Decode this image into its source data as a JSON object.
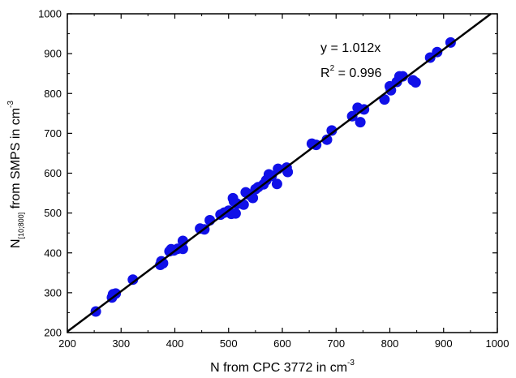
{
  "chart_data": {
    "type": "scatter",
    "xlabel": {
      "main": "N from CPC 3772 in cm",
      "sup": "-3"
    },
    "ylabel": {
      "pre": "N",
      "sub": "[10;800]",
      "post": " from SMPS in cm",
      "sup": "-3"
    },
    "xlim": [
      200,
      1000
    ],
    "ylim": [
      200,
      1000
    ],
    "xticks": [
      "200",
      "300",
      "400",
      "500",
      "600",
      "700",
      "800",
      "900",
      "1000"
    ],
    "yticks": [
      "200",
      "300",
      "400",
      "500",
      "600",
      "700",
      "800",
      "900",
      "1000"
    ],
    "grid": false,
    "point_color": "#1010e8",
    "line_color": "#000000",
    "fit": {
      "slope": 1.012,
      "equation": "y = 1.012x",
      "r2_prefix": "R",
      "r2_sup": "2",
      "r2_value": " = 0.996"
    },
    "points": [
      {
        "x": 253,
        "y": 253
      },
      {
        "x": 283,
        "y": 288
      },
      {
        "x": 285,
        "y": 296
      },
      {
        "x": 290,
        "y": 298
      },
      {
        "x": 322,
        "y": 333
      },
      {
        "x": 373,
        "y": 370
      },
      {
        "x": 375,
        "y": 379
      },
      {
        "x": 378,
        "y": 374
      },
      {
        "x": 390,
        "y": 404
      },
      {
        "x": 393,
        "y": 409
      },
      {
        "x": 398,
        "y": 406
      },
      {
        "x": 405,
        "y": 410
      },
      {
        "x": 415,
        "y": 410
      },
      {
        "x": 415,
        "y": 430
      },
      {
        "x": 447,
        "y": 461
      },
      {
        "x": 455,
        "y": 459
      },
      {
        "x": 465,
        "y": 482
      },
      {
        "x": 485,
        "y": 496
      },
      {
        "x": 492,
        "y": 501
      },
      {
        "x": 500,
        "y": 506
      },
      {
        "x": 505,
        "y": 498
      },
      {
        "x": 508,
        "y": 537
      },
      {
        "x": 510,
        "y": 529
      },
      {
        "x": 513,
        "y": 499
      },
      {
        "x": 516,
        "y": 523
      },
      {
        "x": 528,
        "y": 521
      },
      {
        "x": 532,
        "y": 552
      },
      {
        "x": 538,
        "y": 546
      },
      {
        "x": 545,
        "y": 538
      },
      {
        "x": 550,
        "y": 560
      },
      {
        "x": 555,
        "y": 565
      },
      {
        "x": 565,
        "y": 572
      },
      {
        "x": 570,
        "y": 582
      },
      {
        "x": 575,
        "y": 597
      },
      {
        "x": 580,
        "y": 593
      },
      {
        "x": 590,
        "y": 573
      },
      {
        "x": 592,
        "y": 611
      },
      {
        "x": 608,
        "y": 614
      },
      {
        "x": 610,
        "y": 603
      },
      {
        "x": 655,
        "y": 674
      },
      {
        "x": 663,
        "y": 671
      },
      {
        "x": 683,
        "y": 684
      },
      {
        "x": 692,
        "y": 707
      },
      {
        "x": 730,
        "y": 743
      },
      {
        "x": 740,
        "y": 764
      },
      {
        "x": 745,
        "y": 728
      },
      {
        "x": 752,
        "y": 760
      },
      {
        "x": 790,
        "y": 785
      },
      {
        "x": 800,
        "y": 818
      },
      {
        "x": 802,
        "y": 808
      },
      {
        "x": 813,
        "y": 829
      },
      {
        "x": 818,
        "y": 843
      },
      {
        "x": 824,
        "y": 843
      },
      {
        "x": 843,
        "y": 833
      },
      {
        "x": 848,
        "y": 828
      },
      {
        "x": 875,
        "y": 890
      },
      {
        "x": 888,
        "y": 904
      },
      {
        "x": 913,
        "y": 928
      }
    ]
  }
}
